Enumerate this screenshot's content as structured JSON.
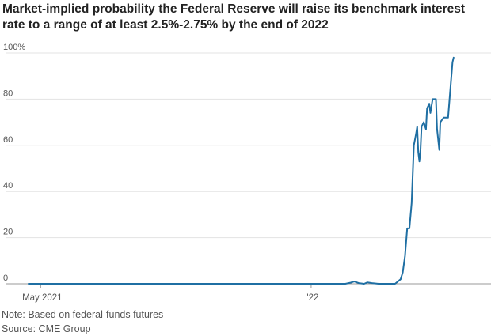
{
  "chart_data": {
    "type": "line",
    "title": "Market-implied probability the Federal Reserve will raise its benchmark interest rate to a range of at least 2.5%-2.75% by the end of 2022",
    "xlabel": "",
    "ylabel": "",
    "ylim": [
      0,
      100
    ],
    "grid": true,
    "legend": "none",
    "y_ticks": [
      "100%",
      "80",
      "60",
      "40",
      "20",
      "0"
    ],
    "x_ticks": [
      "May 2021",
      "'22"
    ],
    "x_range": [
      "2021-04-20",
      "2022-06-10"
    ],
    "line_color": "#1f6fa3",
    "series": [
      {
        "points": [
          [
            "2021-04-20",
            0
          ],
          [
            "2021-06-01",
            0
          ],
          [
            "2021-07-15",
            0
          ],
          [
            "2021-09-01",
            0
          ],
          [
            "2021-10-15",
            0
          ],
          [
            "2021-12-01",
            0
          ],
          [
            "2022-01-01",
            0
          ],
          [
            "2022-02-01",
            0
          ],
          [
            "2022-02-06",
            0.5
          ],
          [
            "2022-02-09",
            1
          ],
          [
            "2022-02-13",
            0.3
          ],
          [
            "2022-02-18",
            0
          ],
          [
            "2022-02-21",
            0.6
          ],
          [
            "2022-02-25",
            0.3
          ],
          [
            "2022-03-03",
            0
          ],
          [
            "2022-03-18",
            0
          ],
          [
            "2022-03-23",
            2
          ],
          [
            "2022-03-25",
            5
          ],
          [
            "2022-03-27",
            12
          ],
          [
            "2022-03-29",
            24
          ],
          [
            "2022-03-31",
            24
          ],
          [
            "2022-04-02",
            35
          ],
          [
            "2022-04-04",
            60
          ],
          [
            "2022-04-06",
            65
          ],
          [
            "2022-04-07",
            68
          ],
          [
            "2022-04-08",
            57
          ],
          [
            "2022-04-09",
            53
          ],
          [
            "2022-04-10",
            58
          ],
          [
            "2022-04-11",
            68
          ],
          [
            "2022-04-13",
            70
          ],
          [
            "2022-04-15",
            67
          ],
          [
            "2022-04-16",
            76
          ],
          [
            "2022-04-18",
            78
          ],
          [
            "2022-04-19",
            74
          ],
          [
            "2022-04-21",
            80
          ],
          [
            "2022-04-24",
            80
          ],
          [
            "2022-04-25",
            67
          ],
          [
            "2022-04-27",
            58
          ],
          [
            "2022-04-28",
            70
          ],
          [
            "2022-05-01",
            72
          ],
          [
            "2022-05-05",
            72
          ],
          [
            "2022-05-07",
            84
          ],
          [
            "2022-05-09",
            96
          ],
          [
            "2022-05-10",
            98
          ]
        ]
      }
    ]
  },
  "notes": {
    "note": "Note: Based on federal-funds futures",
    "source": "Source: CME Group"
  }
}
